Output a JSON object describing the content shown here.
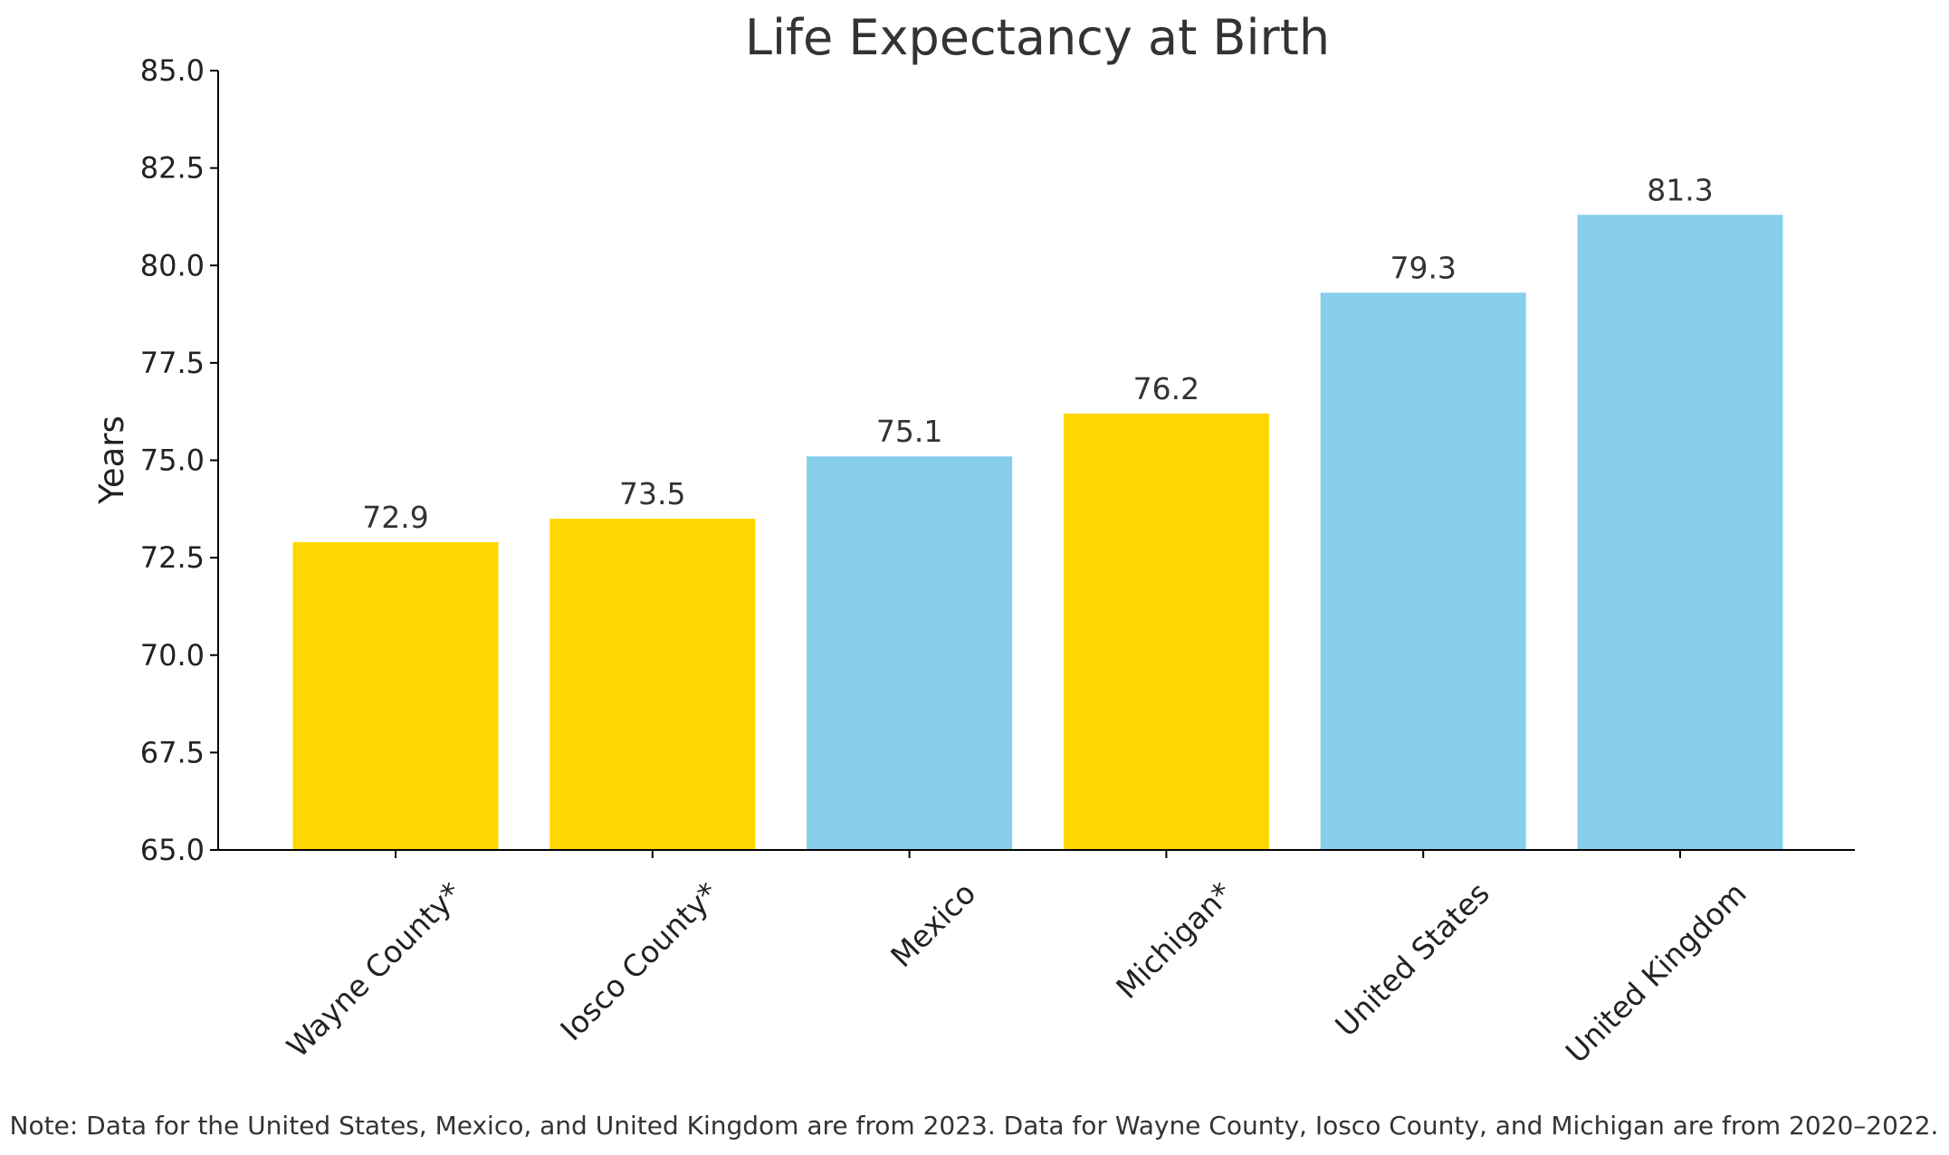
{
  "chart_data": {
    "type": "bar",
    "title": "Life Expectancy at Birth",
    "ylabel": "Years",
    "xlabel": "",
    "ylim": [
      65.0,
      85.0
    ],
    "yticks": [
      "65.0",
      "67.5",
      "70.0",
      "72.5",
      "75.0",
      "77.5",
      "80.0",
      "82.5",
      "85.0"
    ],
    "categories": [
      "Wayne County*",
      "Iosco County*",
      "Mexico",
      "Michigan*",
      "United States",
      "United Kingdom"
    ],
    "values": [
      72.9,
      73.5,
      75.1,
      76.2,
      79.3,
      81.3
    ],
    "value_labels": [
      "72.9",
      "73.5",
      "75.1",
      "76.2",
      "79.3",
      "81.3"
    ],
    "bar_colors": [
      "#FFD700",
      "#FFD700",
      "#87CEEB",
      "#FFD700",
      "#87CEEB",
      "#87CEEB"
    ],
    "grid": false,
    "note": "Note: Data for the United States, Mexico, and United Kingdom are from 2023. Data for Wayne County, Iosco County, and Michigan are from 2020–2022."
  }
}
